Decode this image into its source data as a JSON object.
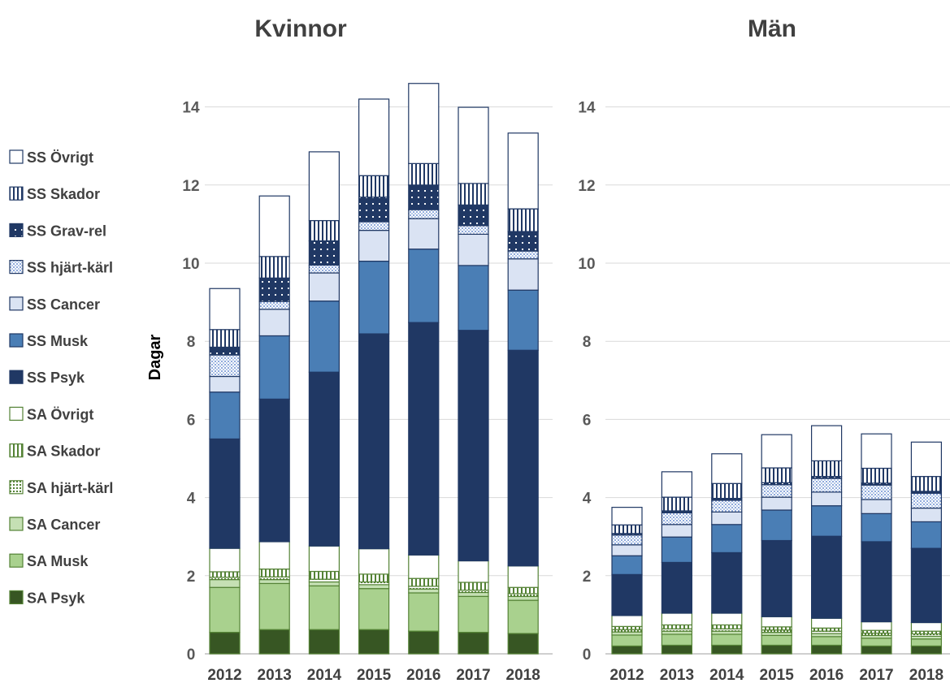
{
  "chart_data": {
    "type": "bar",
    "stacked": true,
    "ylabel": "Dagar",
    "ylim": [
      0,
      15
    ],
    "yticks": [
      0,
      2,
      4,
      6,
      8,
      10,
      12,
      14
    ],
    "grid": true,
    "legend_position": "left",
    "categories": [
      "2012",
      "2013",
      "2014",
      "2015",
      "2016",
      "2017",
      "2018"
    ],
    "series_meta": [
      {
        "name": "SA Psyk",
        "color": "#375623",
        "pattern": "solid"
      },
      {
        "name": "SA Musk",
        "color": "#a9d18e",
        "pattern": "solid"
      },
      {
        "name": "SA Cancer",
        "color": "#c5e0b4",
        "pattern": "solid"
      },
      {
        "name": "SA hjärt-kärl",
        "color": "#548235",
        "pattern": "dots"
      },
      {
        "name": "SA Skador",
        "color": "#548235",
        "pattern": "vlines"
      },
      {
        "name": "SA Övrigt",
        "color": "#ffffff",
        "pattern": "outline"
      },
      {
        "name": "SS Psyk",
        "color": "#203864",
        "pattern": "solid"
      },
      {
        "name": "SS Musk",
        "color": "#4a7eb5",
        "pattern": "solid"
      },
      {
        "name": "SS Cancer",
        "color": "#dae3f3",
        "pattern": "solid"
      },
      {
        "name": "SS hjärt-kärl",
        "color": "#8faadc",
        "pattern": "dots"
      },
      {
        "name": "SS Grav-rel",
        "color": "#203864",
        "pattern": "darkdots"
      },
      {
        "name": "SS Skador",
        "color": "#203864",
        "pattern": "vlines"
      },
      {
        "name": "SS Övrigt",
        "color": "#ffffff",
        "pattern": "outline"
      }
    ],
    "panels": [
      {
        "title": "Kvinnor",
        "values": [
          [
            0.55,
            0.62,
            0.62,
            0.62,
            0.58,
            0.55,
            0.52
          ],
          [
            1.15,
            1.18,
            1.12,
            1.05,
            0.98,
            0.92,
            0.85
          ],
          [
            0.2,
            0.1,
            0.1,
            0.1,
            0.1,
            0.1,
            0.1
          ],
          [
            0.06,
            0.07,
            0.07,
            0.07,
            0.07,
            0.06,
            0.07
          ],
          [
            0.14,
            0.2,
            0.2,
            0.2,
            0.2,
            0.2,
            0.16
          ],
          [
            0.6,
            0.7,
            0.65,
            0.65,
            0.6,
            0.55,
            0.55
          ],
          [
            2.8,
            3.65,
            4.45,
            5.5,
            5.95,
            5.9,
            5.52
          ],
          [
            1.2,
            1.62,
            1.82,
            1.86,
            1.88,
            1.66,
            1.54
          ],
          [
            0.4,
            0.68,
            0.72,
            0.79,
            0.78,
            0.8,
            0.8
          ],
          [
            0.55,
            0.2,
            0.2,
            0.22,
            0.23,
            0.22,
            0.2
          ],
          [
            0.2,
            0.6,
            0.62,
            0.63,
            0.63,
            0.53,
            0.5
          ],
          [
            0.45,
            0.55,
            0.52,
            0.55,
            0.55,
            0.55,
            0.58
          ],
          [
            1.05,
            1.55,
            1.76,
            1.96,
            2.05,
            1.95,
            1.94
          ]
        ]
      },
      {
        "title": "Män",
        "values": [
          [
            0.2,
            0.22,
            0.22,
            0.22,
            0.22,
            0.2,
            0.2
          ],
          [
            0.28,
            0.28,
            0.28,
            0.25,
            0.22,
            0.2,
            0.18
          ],
          [
            0.08,
            0.08,
            0.08,
            0.08,
            0.08,
            0.07,
            0.07
          ],
          [
            0.06,
            0.06,
            0.06,
            0.06,
            0.06,
            0.06,
            0.06
          ],
          [
            0.08,
            0.1,
            0.1,
            0.08,
            0.08,
            0.07,
            0.07
          ],
          [
            0.28,
            0.3,
            0.3,
            0.26,
            0.25,
            0.22,
            0.22
          ],
          [
            1.05,
            1.3,
            1.55,
            1.95,
            2.1,
            2.05,
            1.9
          ],
          [
            0.48,
            0.65,
            0.72,
            0.78,
            0.78,
            0.72,
            0.68
          ],
          [
            0.28,
            0.32,
            0.32,
            0.33,
            0.35,
            0.36,
            0.35
          ],
          [
            0.25,
            0.3,
            0.3,
            0.32,
            0.35,
            0.37,
            0.38
          ],
          [
            0.04,
            0.05,
            0.05,
            0.05,
            0.05,
            0.05,
            0.05
          ],
          [
            0.22,
            0.35,
            0.38,
            0.38,
            0.4,
            0.38,
            0.38
          ],
          [
            0.45,
            0.65,
            0.76,
            0.85,
            0.9,
            0.88,
            0.88
          ]
        ]
      }
    ]
  }
}
